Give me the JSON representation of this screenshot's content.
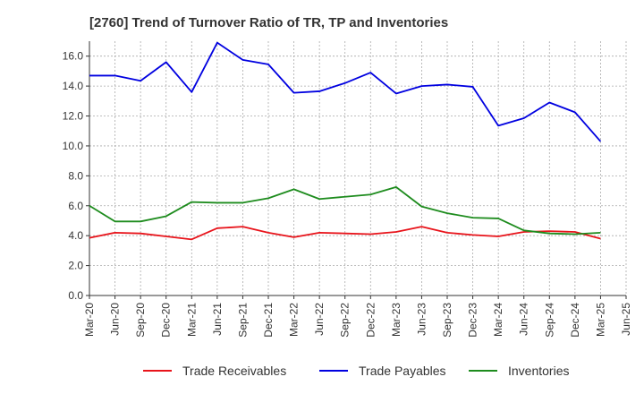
{
  "chart_data": {
    "type": "line",
    "title": "[2760]  Trend of Turnover Ratio of TR, TP and Inventories",
    "xlabel": "",
    "ylabel": "",
    "ylim": [
      0,
      17
    ],
    "yticks": [
      "0.0",
      "2.0",
      "4.0",
      "6.0",
      "8.0",
      "10.0",
      "12.0",
      "14.0",
      "16.0"
    ],
    "tick_labels": [
      "Mar-20",
      "Jun-20",
      "Sep-20",
      "Dec-20",
      "Mar-21",
      "Jun-21",
      "Sep-21",
      "Dec-21",
      "Mar-22",
      "Jun-22",
      "Sep-22",
      "Dec-22",
      "Mar-23",
      "Jun-23",
      "Sep-23",
      "Dec-23",
      "Mar-24",
      "Jun-24",
      "Sep-24",
      "Dec-24",
      "Mar-25",
      "Jun-25"
    ],
    "categories": [
      "Mar-20",
      "Jun-20",
      "Sep-20",
      "Dec-20",
      "Mar-21",
      "Jun-21",
      "Sep-21",
      "Dec-21",
      "Mar-22",
      "Jun-22",
      "Sep-22",
      "Dec-22",
      "Mar-23",
      "Jun-23",
      "Sep-23",
      "Dec-23",
      "Mar-24",
      "Jun-24",
      "Sep-24",
      "Dec-24",
      "Mar-25"
    ],
    "grid": true,
    "legend_position": "bottom",
    "series": [
      {
        "name": "Trade Receivables",
        "color": "#e8141b",
        "values": [
          3.85,
          4.2,
          4.15,
          3.95,
          3.75,
          4.5,
          4.6,
          4.2,
          3.9,
          4.2,
          4.15,
          4.1,
          4.25,
          4.6,
          4.2,
          4.05,
          3.95,
          4.25,
          4.3,
          4.25,
          3.8
        ]
      },
      {
        "name": "Trade Payables",
        "color": "#0000e0",
        "values": [
          14.7,
          14.7,
          14.35,
          15.6,
          13.6,
          16.9,
          15.75,
          15.45,
          13.55,
          13.65,
          14.2,
          14.9,
          13.5,
          14.0,
          14.1,
          13.95,
          11.35,
          11.85,
          12.9,
          12.25,
          10.3
        ]
      },
      {
        "name": "Inventories",
        "color": "#1e8c1e",
        "values": [
          6.0,
          4.95,
          4.95,
          5.3,
          6.25,
          6.2,
          6.2,
          6.5,
          7.1,
          6.45,
          6.6,
          6.75,
          7.25,
          5.95,
          5.5,
          5.2,
          5.15,
          4.35,
          4.15,
          4.1,
          4.2
        ]
      }
    ]
  }
}
